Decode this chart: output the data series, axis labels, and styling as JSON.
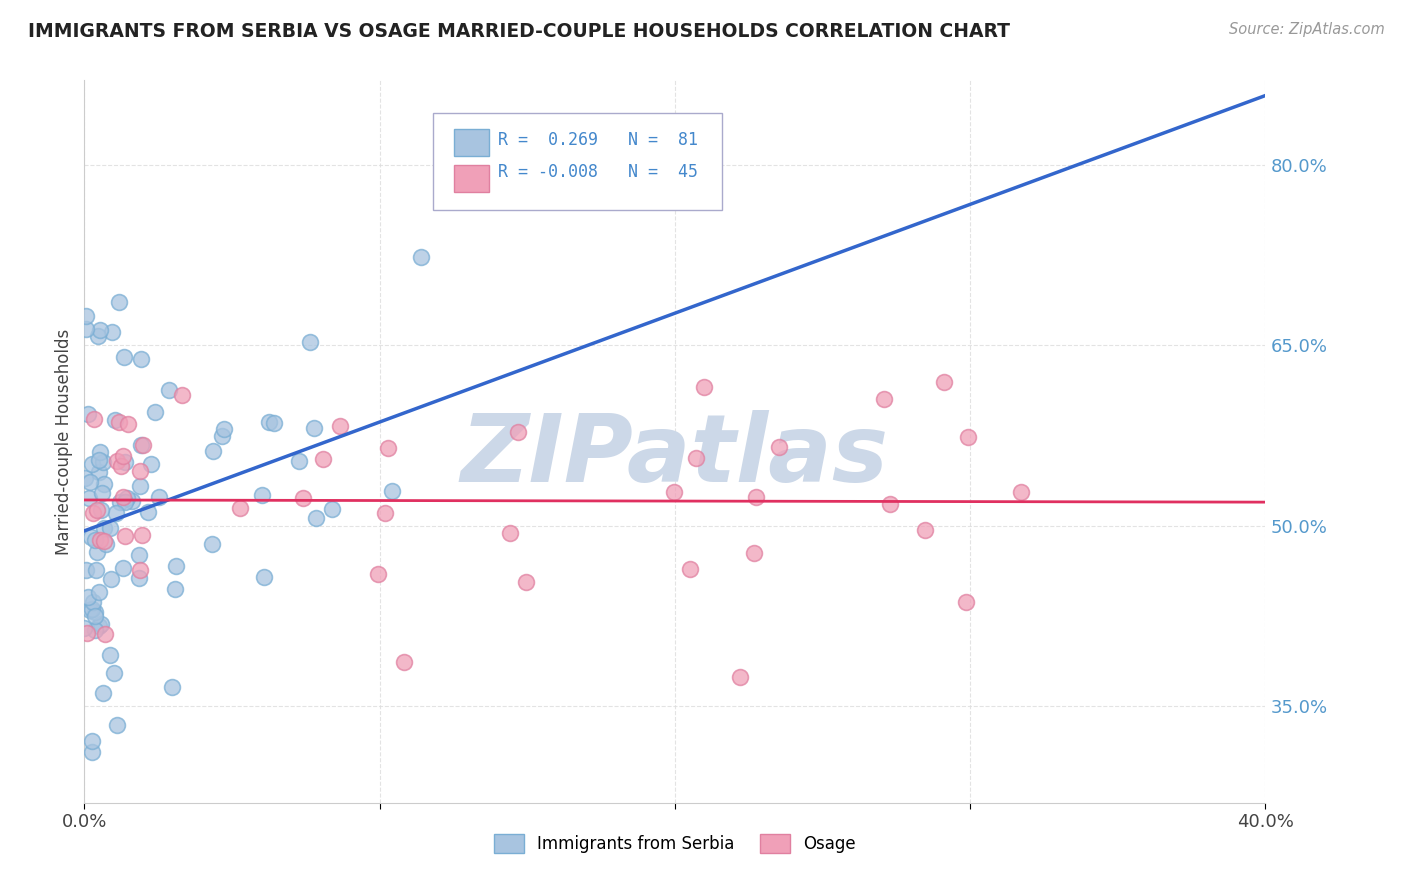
{
  "title": "IMMIGRANTS FROM SERBIA VS OSAGE MARRIED-COUPLE HOUSEHOLDS CORRELATION CHART",
  "source_text": "Source: ZipAtlas.com",
  "ylabel": "Married-couple Households",
  "xlim": [
    0.0,
    0.4
  ],
  "ylim": [
    0.27,
    0.87
  ],
  "yticks": [
    0.35,
    0.5,
    0.65,
    0.8
  ],
  "ytick_labels": [
    "35.0%",
    "50.0%",
    "65.0%",
    "80.0%"
  ],
  "xticks": [
    0.0,
    0.1,
    0.2,
    0.3,
    0.4
  ],
  "xtick_labels": [
    "0.0%",
    "",
    "",
    "",
    "40.0%"
  ],
  "series1_color": "#a8c4e0",
  "series1_edge": "#7aaed4",
  "series2_color": "#f0a0b8",
  "series2_edge": "#e080a0",
  "trend1_color": "#3366cc",
  "trend2_color": "#e03060",
  "dash_color": "#b0c0d0",
  "watermark": "ZIPatlas",
  "watermark_color": "#ccd8e8",
  "legend_r1": "R =  0.269",
  "legend_n1": "N =  81",
  "legend_r2": "R = -0.008",
  "legend_n2": "N =  45",
  "legend_text_color": "#4488cc",
  "grid_color": "#dddddd",
  "ytick_color": "#5599cc",
  "xtick_color": "#444444",
  "title_color": "#222222",
  "source_color": "#999999",
  "ylabel_color": "#444444"
}
